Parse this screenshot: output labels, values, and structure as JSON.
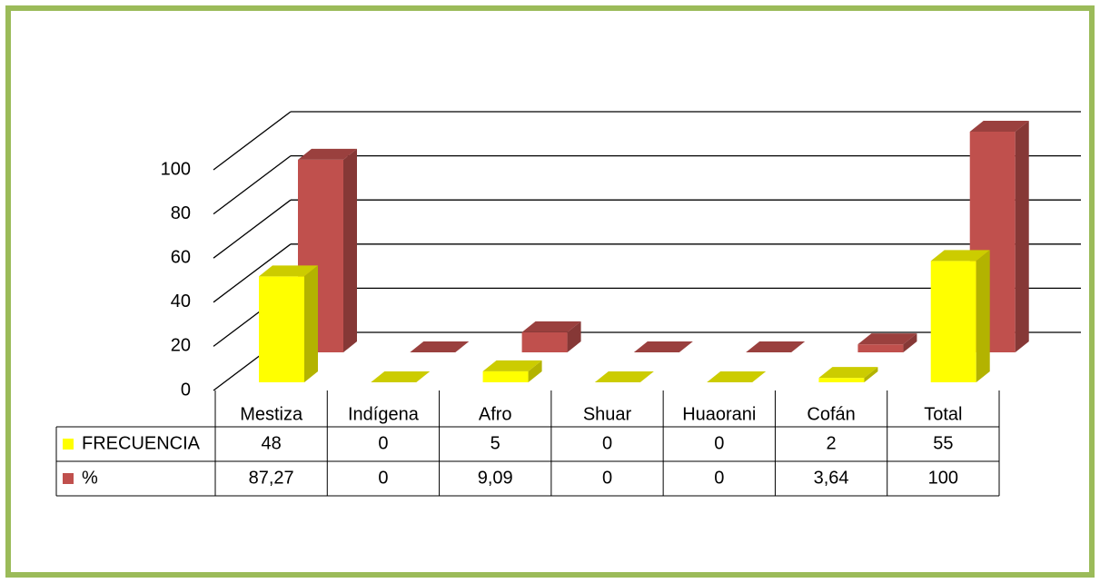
{
  "chart_data": {
    "type": "bar3d",
    "categories": [
      "Mestiza",
      "Indígena",
      "Afro",
      "Shuar",
      "Huaorani",
      "Cofán",
      "Total"
    ],
    "series": [
      {
        "name": "FRECUENCIA",
        "color": "#ffff00",
        "values": [
          48,
          0,
          5,
          0,
          0,
          2,
          55
        ]
      },
      {
        "name": "%",
        "color": "#c0504d",
        "values": [
          87.27,
          0,
          9.09,
          0,
          0,
          3.64,
          100
        ],
        "value_labels": [
          "87,27",
          "0",
          "9,09",
          "0",
          "0",
          "3,64",
          "100"
        ]
      }
    ],
    "ylim": [
      0,
      100
    ],
    "yticks": [
      0,
      20,
      40,
      60,
      80,
      100
    ],
    "grid": true
  }
}
